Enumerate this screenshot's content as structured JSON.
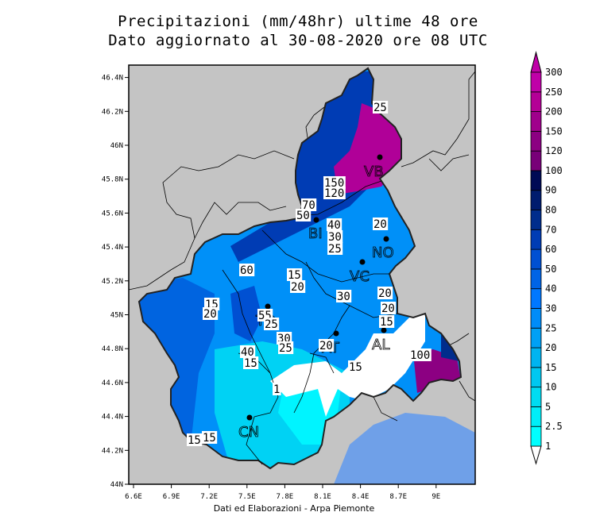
{
  "title_line1": "Precipitazioni (mm/48hr) ultime 48 ore",
  "title_line2": "Dato aggiornato al 30-08-2020 ore 08 UTC",
  "credit": "Dati ed Elaborazioni - Arpa Piemonte",
  "axes": {
    "lon_ticks": [
      "6.6E",
      "6.9E",
      "7.2E",
      "7.5E",
      "7.8E",
      "8.1E",
      "8.4E",
      "8.7E",
      "9E"
    ],
    "lat_ticks": [
      "46.4N",
      "46.2N",
      "46N",
      "45.8N",
      "45.6N",
      "45.4N",
      "45.2N",
      "45N",
      "44.8N",
      "44.6N",
      "44.4N",
      "44.2N",
      "44N"
    ]
  },
  "colorbar": {
    "unit": "mm/48hr",
    "levels": [
      "1",
      "2.5",
      "5",
      "10",
      "15",
      "20",
      "25",
      "30",
      "40",
      "50",
      "60",
      "70",
      "80",
      "90",
      "100",
      "120",
      "150",
      "200",
      "250",
      "300"
    ],
    "colors": [
      "#00ffff",
      "#00eef8",
      "#00dcf2",
      "#00c8f0",
      "#00b4f0",
      "#00a0f5",
      "#008cf8",
      "#0078ff",
      "#0064e6",
      "#0050d2",
      "#003cb4",
      "#002d8c",
      "#001c6e",
      "#000a55",
      "#780078",
      "#8c0082",
      "#a0008c",
      "#b40096",
      "#c000a8"
    ],
    "top_arrow_color": "#c000a8",
    "bottom_arrow_color": "#ffffff"
  },
  "map_colors": {
    "background": "#c4c4c4",
    "sea": "#6fa0e8",
    "no_rain": "#ffffff"
  },
  "cities": [
    "VB",
    "BI",
    "NO",
    "VC",
    "TO",
    "AT",
    "AL",
    "CN"
  ],
  "contour_labels": [
    "25",
    "150",
    "120",
    "70",
    "50",
    "40",
    "30",
    "25",
    "20",
    "60",
    "15",
    "20",
    "15",
    "20",
    "55",
    "25",
    "30",
    "25",
    "30",
    "20",
    "20",
    "15",
    "40",
    "15",
    "15",
    "15",
    "1",
    "100",
    "15",
    "20"
  ]
}
